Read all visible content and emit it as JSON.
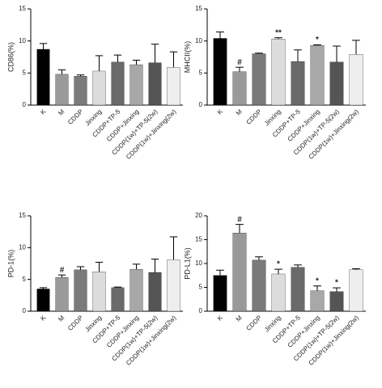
{
  "chart_data": [
    {
      "type": "bar",
      "ylabel": "CD86(%)",
      "ylim": [
        0,
        15
      ],
      "yticks": [
        0,
        5,
        10,
        15
      ],
      "categories": [
        "K",
        "M",
        "CDDP",
        "Jinxing",
        "CDDP+TP-5",
        "CDDP+Jinxing",
        "CDDP(1w)+TP-5(2w)",
        "CDDP(1w)+Jinxing(2w)"
      ],
      "colors": [
        "#000000",
        "#9a9a9a",
        "#7a7a7a",
        "#dcdcdc",
        "#6a6a6a",
        "#a8a8a8",
        "#555555",
        "#eeeeee"
      ],
      "values": [
        8.7,
        4.8,
        4.5,
        5.3,
        6.7,
        6.3,
        6.6,
        5.9
      ],
      "errors": [
        0.9,
        0.7,
        0.2,
        2.4,
        1.1,
        0.7,
        2.9,
        2.4
      ],
      "significance": [
        null,
        null,
        null,
        null,
        null,
        null,
        null,
        null
      ]
    },
    {
      "type": "bar",
      "ylabel": "MHCII(%)",
      "ylim": [
        0,
        15
      ],
      "yticks": [
        0,
        5,
        10,
        15
      ],
      "categories": [
        "K",
        "M",
        "CDDP",
        "Jinxing",
        "CDDP+TP-5",
        "CDDP+Jinxing",
        "CDDP(1w)+TP-5(2w)",
        "CDDP(1w)+Jinxing(2w)"
      ],
      "colors": [
        "#000000",
        "#9a9a9a",
        "#7a7a7a",
        "#dcdcdc",
        "#6a6a6a",
        "#a8a8a8",
        "#555555",
        "#eeeeee"
      ],
      "values": [
        10.4,
        5.2,
        8.0,
        10.3,
        6.8,
        9.3,
        6.7,
        7.9
      ],
      "errors": [
        1.0,
        0.7,
        0.1,
        0.2,
        1.8,
        0.1,
        2.5,
        2.2
      ],
      "significance": [
        null,
        "#",
        null,
        "**",
        null,
        "*",
        null,
        null
      ]
    },
    {
      "type": "bar",
      "ylabel": "PD-1(%)",
      "ylim": [
        0,
        15
      ],
      "yticks": [
        0,
        5,
        10,
        15
      ],
      "categories": [
        "K",
        "M",
        "CDDP",
        "Jinxing",
        "CDDP+TP-5",
        "CDDP+Jinxing",
        "CDDP(1w)+TP-5(2w)",
        "CDDP(1w)+Jinxing(2w)"
      ],
      "colors": [
        "#000000",
        "#9a9a9a",
        "#7a7a7a",
        "#dcdcdc",
        "#6a6a6a",
        "#a8a8a8",
        "#555555",
        "#eeeeee"
      ],
      "values": [
        3.5,
        5.3,
        6.5,
        6.2,
        3.7,
        6.6,
        6.1,
        8.1
      ],
      "errors": [
        0.2,
        0.4,
        0.5,
        1.5,
        0.1,
        0.8,
        2.1,
        3.6
      ],
      "significance": [
        null,
        "#",
        null,
        null,
        null,
        null,
        null,
        null
      ]
    },
    {
      "type": "bar",
      "ylabel": "PD-L1(%)",
      "ylim": [
        0,
        20
      ],
      "yticks": [
        0,
        5,
        10,
        15,
        20
      ],
      "categories": [
        "K",
        "M",
        "CDDP",
        "Jinxing",
        "CDDP+TP-5",
        "CDDP+Jinxing",
        "CDDP(1w)+TP-5(2w)",
        "CDDP(1w)+Jinxing(2w)"
      ],
      "colors": [
        "#000000",
        "#9a9a9a",
        "#7a7a7a",
        "#dcdcdc",
        "#6a6a6a",
        "#a8a8a8",
        "#555555",
        "#eeeeee"
      ],
      "values": [
        7.5,
        16.4,
        10.7,
        7.8,
        9.2,
        4.3,
        4.1,
        8.7
      ],
      "errors": [
        1.1,
        1.8,
        0.7,
        1.0,
        0.5,
        1.0,
        0.8,
        0.2
      ],
      "significance": [
        null,
        "#",
        null,
        "*",
        null,
        "*",
        "*",
        null
      ]
    }
  ]
}
